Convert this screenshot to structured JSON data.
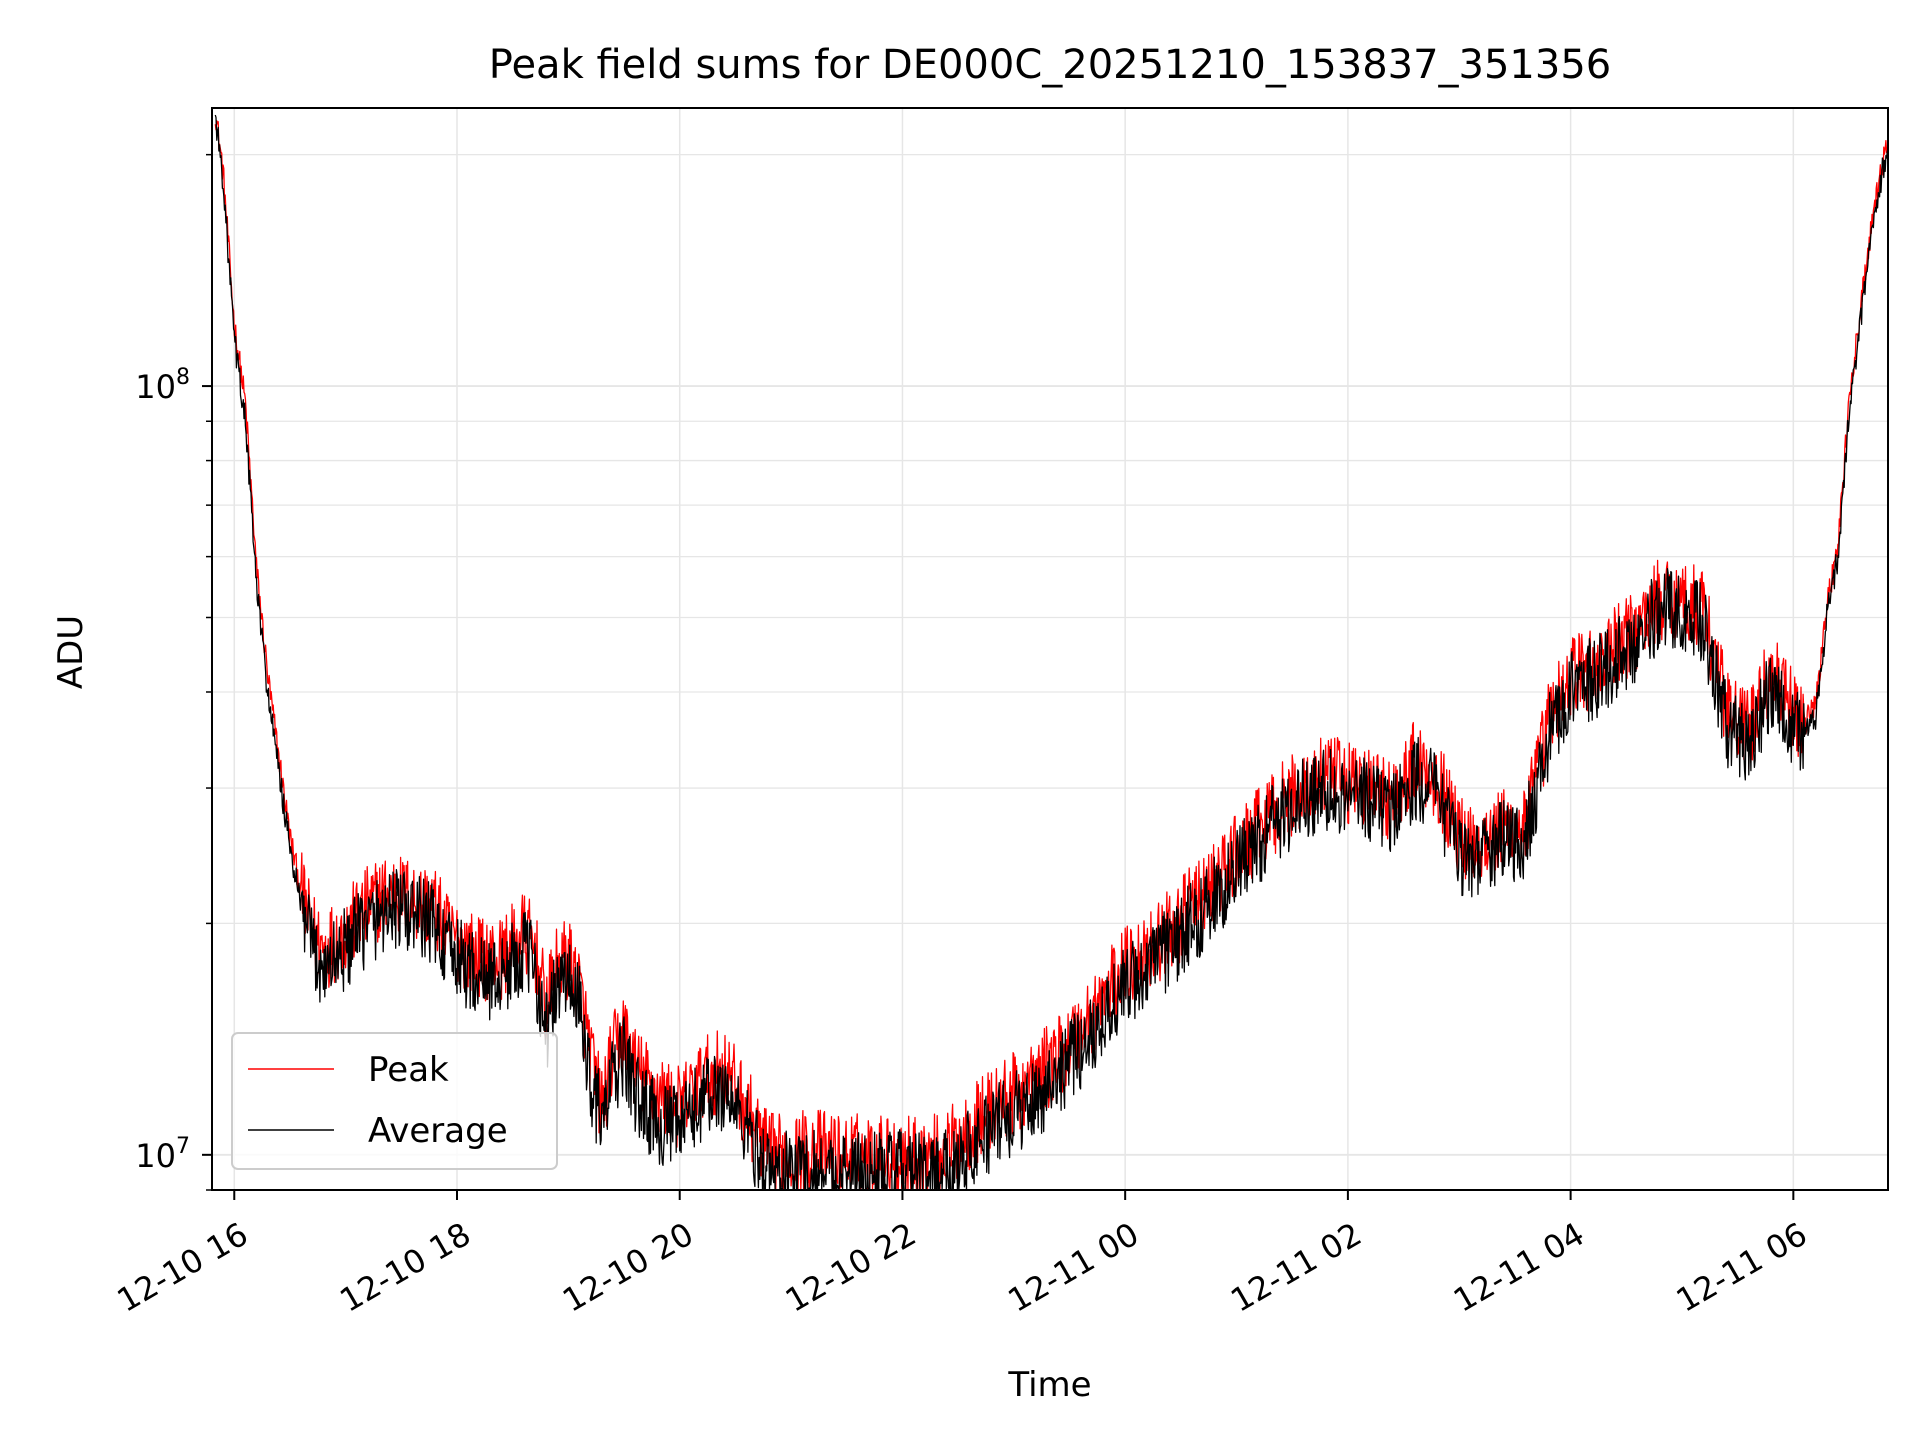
{
  "chart_data": {
    "type": "line",
    "title": "Peak field sums for DE000C_20251210_153837_351356",
    "xlabel": "Time",
    "ylabel": "ADU",
    "yscale": "log",
    "ylim": [
      9000000,
      230000000
    ],
    "xlim_hours": [
      15.8,
      30.85
    ],
    "x_unit": "hours since 2025-12-10 00:00",
    "grid": true,
    "legend_position": "lower-left",
    "x_ticks": [
      {
        "value": 16,
        "label": "12-10 16"
      },
      {
        "value": 18,
        "label": "12-10 18"
      },
      {
        "value": 20,
        "label": "12-10 20"
      },
      {
        "value": 22,
        "label": "12-10 22"
      },
      {
        "value": 24,
        "label": "12-11 00"
      },
      {
        "value": 26,
        "label": "12-11 02"
      },
      {
        "value": 28,
        "label": "12-11 04"
      },
      {
        "value": 30,
        "label": "12-11 06"
      }
    ],
    "y_ticks": [
      {
        "value": 10000000,
        "base": "10",
        "exp": "7"
      },
      {
        "value": 100000000,
        "base": "10",
        "exp": "8"
      }
    ],
    "series": [
      {
        "name": "Peak",
        "color": "#ff0000",
        "x": [
          15.83,
          15.9,
          16.0,
          16.1,
          16.2,
          16.3,
          16.4,
          16.5,
          16.6,
          16.7,
          16.8,
          16.9,
          17.0,
          17.2,
          17.4,
          17.6,
          17.8,
          17.9,
          18.0,
          18.2,
          18.4,
          18.6,
          18.7,
          18.8,
          18.9,
          19.0,
          19.1,
          19.2,
          19.3,
          19.4,
          19.5,
          19.6,
          19.8,
          20.0,
          20.2,
          20.4,
          20.6,
          20.8,
          21.0,
          21.2,
          21.4,
          21.6,
          21.8,
          22.0,
          22.2,
          22.4,
          22.6,
          22.8,
          23.0,
          23.2,
          23.4,
          23.6,
          23.8,
          24.0,
          24.2,
          24.4,
          24.6,
          24.8,
          25.0,
          25.2,
          25.4,
          25.6,
          25.8,
          26.0,
          26.2,
          26.4,
          26.6,
          26.8,
          27.0,
          27.2,
          27.4,
          27.6,
          27.8,
          28.0,
          28.2,
          28.4,
          28.6,
          28.8,
          29.0,
          29.2,
          29.4,
          29.6,
          29.8,
          30.0,
          30.1,
          30.2,
          30.3,
          30.4,
          30.5,
          30.6,
          30.7,
          30.8,
          30.85
        ],
        "values": [
          228000000,
          190000000,
          120000000,
          95000000,
          58000000,
          42000000,
          33000000,
          26000000,
          22000000,
          19500000,
          18500000,
          19000000,
          19500000,
          21000000,
          22000000,
          21500000,
          21000000,
          19500000,
          19000000,
          18000000,
          18000000,
          19500000,
          18500000,
          15500000,
          17500000,
          18000000,
          16500000,
          13500000,
          11500000,
          13500000,
          14500000,
          13000000,
          12000000,
          11500000,
          12500000,
          13000000,
          11500000,
          10000000,
          10000000,
          10200000,
          10000000,
          10000000,
          10000000,
          10000000,
          9900000,
          10100000,
          10800000,
          11500000,
          12000000,
          12500000,
          13500000,
          14500000,
          16000000,
          17500000,
          18500000,
          19500000,
          21000000,
          22500000,
          24500000,
          26500000,
          28500000,
          30000000,
          31000000,
          30500000,
          30000000,
          29000000,
          32500000,
          31000000,
          26000000,
          25500000,
          26500000,
          27000000,
          36500000,
          42000000,
          43000000,
          45500000,
          48500000,
          53000000,
          53000000,
          51000000,
          38000000,
          35500000,
          42500000,
          37500000,
          36500000,
          38500000,
          52000000,
          62000000,
          95000000,
          125000000,
          160000000,
          195000000,
          205000000
        ]
      },
      {
        "name": "Average",
        "color": "#000000",
        "x": [
          15.83,
          15.9,
          16.0,
          16.1,
          16.2,
          16.3,
          16.4,
          16.5,
          16.6,
          16.7,
          16.8,
          16.9,
          17.0,
          17.2,
          17.4,
          17.6,
          17.8,
          17.9,
          18.0,
          18.2,
          18.4,
          18.6,
          18.7,
          18.8,
          18.9,
          19.0,
          19.1,
          19.2,
          19.3,
          19.4,
          19.5,
          19.6,
          19.8,
          20.0,
          20.2,
          20.4,
          20.6,
          20.8,
          21.0,
          21.2,
          21.4,
          21.6,
          21.8,
          22.0,
          22.2,
          22.4,
          22.6,
          22.8,
          23.0,
          23.2,
          23.4,
          23.6,
          23.8,
          24.0,
          24.2,
          24.4,
          24.6,
          24.8,
          25.0,
          25.2,
          25.4,
          25.6,
          25.8,
          26.0,
          26.2,
          26.4,
          26.6,
          26.8,
          27.0,
          27.2,
          27.4,
          27.6,
          27.8,
          28.0,
          28.2,
          28.4,
          28.6,
          28.8,
          29.0,
          29.2,
          29.4,
          29.6,
          29.8,
          30.0,
          30.1,
          30.2,
          30.3,
          30.4,
          30.5,
          30.6,
          30.7,
          30.8,
          30.85
        ],
        "values": [
          225000000,
          185000000,
          115000000,
          90000000,
          55000000,
          40000000,
          31500000,
          25000000,
          21000000,
          18500000,
          17500000,
          18000000,
          18500000,
          20000000,
          21000000,
          20500000,
          20000000,
          18500000,
          18000000,
          17000000,
          17000000,
          18500000,
          17500000,
          14500000,
          16500000,
          17000000,
          15500000,
          12500000,
          11000000,
          12500000,
          13500000,
          12000000,
          11000000,
          10800000,
          11800000,
          12200000,
          10800000,
          9500000,
          9500000,
          9600000,
          9400000,
          9500000,
          9500000,
          9500000,
          9400000,
          9500000,
          10200000,
          10800000,
          11300000,
          11800000,
          12800000,
          13700000,
          15200000,
          16500000,
          17500000,
          18500000,
          20000000,
          21500000,
          23500000,
          25500000,
          27500000,
          29000000,
          30000000,
          29500000,
          29000000,
          28000000,
          31000000,
          29500000,
          24500000,
          24500000,
          25500000,
          26000000,
          35000000,
          40500000,
          41500000,
          44000000,
          47000000,
          51000000,
          51500000,
          49000000,
          36000000,
          34000000,
          41000000,
          36000000,
          35000000,
          37000000,
          50000000,
          60000000,
          92000000,
          120000000,
          155000000,
          190000000,
          200000000
        ]
      }
    ]
  }
}
